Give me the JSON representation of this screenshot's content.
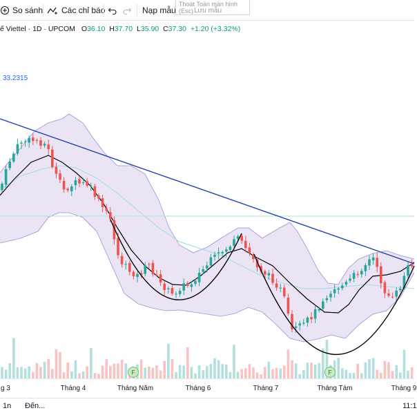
{
  "toolbar": {
    "compare_label": "So sánh",
    "indicators_label": "Các chỉ báo",
    "templates_label": "Nạp mẫu",
    "tooltip_line1": "Thoát Toàn màn hình",
    "tooltip_line2": "(Esc)",
    "save_template_label": "Lưu mẫu"
  },
  "legend": {
    "symbol": "ế Viettel · 1D · UPCOM",
    "open_label": "O",
    "open": "36.10",
    "high_label": "H",
    "high": "37.70",
    "low_label": "L",
    "low": "35.90",
    "close_label": "C",
    "close": "37.30",
    "change": "+1.20 (+3.32%)"
  },
  "indicator": {
    "value": "33.2315"
  },
  "colors": {
    "up": "#26a69a",
    "down": "#ef5350",
    "band_fill": "#d1c4e9",
    "band_line": "#9c8fd8",
    "basis": "#000000",
    "ma": "#9fdde0",
    "trendline": "#2144a6",
    "hline": "#b2e0db"
  },
  "xaxis": {
    "labels": [
      "g 3",
      "Tháng 4",
      "Tháng Năm",
      "Tháng 6",
      "Tháng 7",
      "Tháng Tám",
      "Tháng 9"
    ]
  },
  "events": [
    {
      "label": "F"
    },
    {
      "label": "F"
    }
  ],
  "bottombar": {
    "range_label": "1n",
    "goto_label": "Đến...",
    "time": "11:1"
  }
}
